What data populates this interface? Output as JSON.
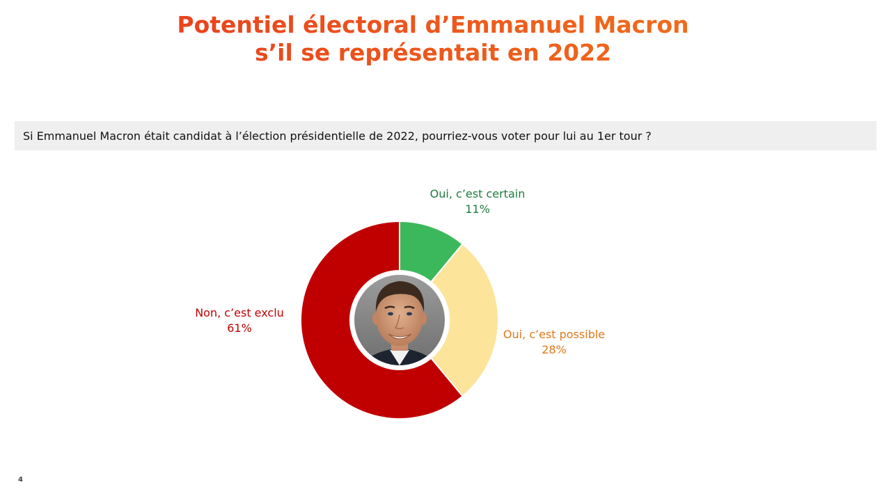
{
  "title": {
    "line1": "Potentiel électoral d’Emmanuel Macron",
    "line2": "s’il se représentait en 2022"
  },
  "question": "Si Emmanuel Macron était candidat à l’élection présidentielle de 2022, pourriez-vous voter pour lui au 1er tour ?",
  "page_number": "4",
  "colors": {
    "title_gradient_start": "#e8341e",
    "title_gradient_end": "#f27a1a",
    "question_bg": "#efefef"
  },
  "center_image": {
    "icon": "portrait-photo-icon"
  },
  "chart_data": {
    "type": "pie",
    "style": "donut",
    "slices": [
      {
        "name": "Oui, c’est certain",
        "value": 11,
        "display": "11%",
        "color": "#3cb85c",
        "label_color": "#1e7a3c"
      },
      {
        "name": "Oui, c’est possible",
        "value": 28,
        "display": "28%",
        "color": "#fde49b",
        "label_color": "#e07818"
      },
      {
        "name": "Non, c’est exclu",
        "value": 61,
        "display": "61%",
        "color": "#c00000",
        "label_color": "#c00000"
      }
    ]
  }
}
